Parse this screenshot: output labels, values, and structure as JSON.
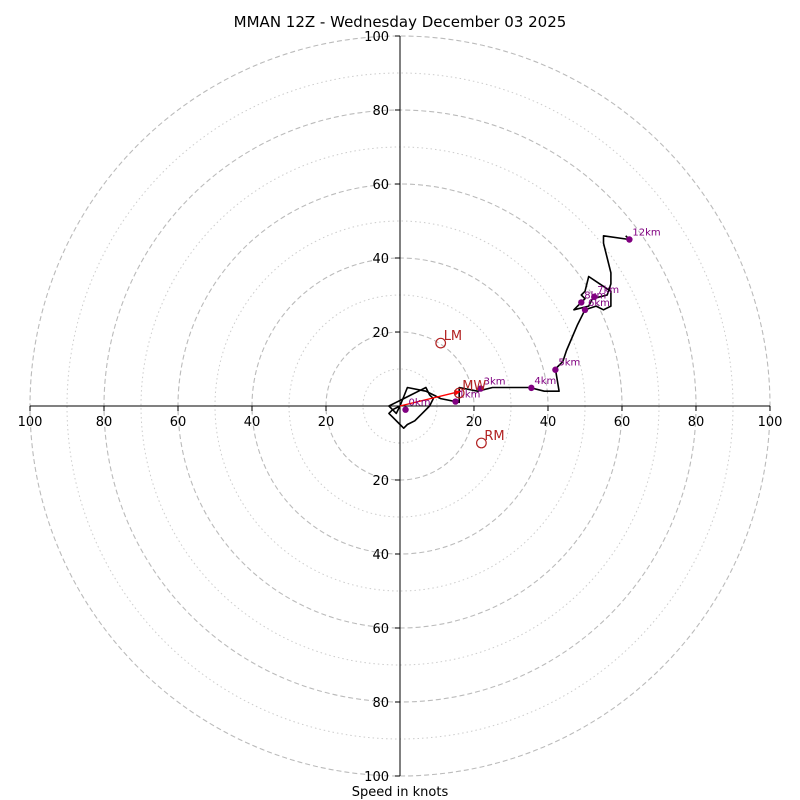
{
  "chart_data": {
    "type": "hodograph",
    "title": "MMAN 12Z - Wednesday December 03 2025",
    "xlabel": "Speed in knots",
    "max_speed": 100,
    "ring_major": [
      20,
      40,
      60,
      80,
      100
    ],
    "ring_minor": [
      10,
      30,
      50,
      70,
      90
    ],
    "tick_values": [
      20,
      40,
      60,
      80,
      100
    ],
    "tick_labels": [
      "20",
      "40",
      "60",
      "80",
      "100"
    ],
    "trace": [
      [
        0,
        0
      ],
      [
        2,
        5
      ],
      [
        7,
        4
      ],
      [
        9,
        3
      ],
      [
        11,
        2
      ],
      [
        16,
        1
      ],
      [
        16,
        5
      ],
      [
        21,
        4
      ],
      [
        25,
        5
      ],
      [
        31,
        5
      ],
      [
        35,
        5
      ],
      [
        39,
        4
      ],
      [
        43,
        4
      ],
      [
        42,
        10
      ],
      [
        44,
        12
      ],
      [
        45,
        15
      ],
      [
        48,
        22
      ],
      [
        50,
        26
      ],
      [
        53,
        27
      ],
      [
        55,
        26
      ],
      [
        57,
        27
      ],
      [
        57,
        31
      ],
      [
        54,
        33
      ],
      [
        51,
        35
      ],
      [
        50,
        31
      ],
      [
        49,
        30
      ],
      [
        50,
        29
      ],
      [
        49,
        28
      ],
      [
        48,
        27
      ],
      [
        47,
        26
      ],
      [
        51,
        27
      ],
      [
        52,
        29
      ],
      [
        56,
        30
      ],
      [
        57,
        33
      ],
      [
        57,
        36
      ],
      [
        56,
        40
      ],
      [
        55,
        44
      ],
      [
        55,
        46
      ],
      [
        62,
        45
      ],
      [
        61,
        46
      ]
    ],
    "trace_low": [
      [
        0,
        0
      ],
      [
        -1,
        -2
      ],
      [
        -2,
        -1
      ],
      [
        -3,
        0
      ],
      [
        -1,
        1
      ],
      [
        1,
        2
      ],
      [
        3,
        3
      ],
      [
        5,
        4
      ],
      [
        7,
        5
      ],
      [
        8,
        3
      ],
      [
        9,
        2
      ],
      [
        8,
        0
      ],
      [
        6,
        -2
      ],
      [
        4,
        -4
      ],
      [
        2,
        -5
      ],
      [
        1,
        -6
      ],
      [
        0,
        -5
      ],
      [
        -2,
        -3
      ],
      [
        -3,
        -2
      ],
      [
        -2,
        -1
      ],
      [
        0,
        0
      ]
    ],
    "height_markers": [
      {
        "label": "0km",
        "u": 1.5,
        "v": -1.0
      },
      {
        "label": "1km",
        "u": 15.0,
        "v": 1.2
      },
      {
        "label": "3km",
        "u": 21.8,
        "v": 4.7
      },
      {
        "label": "4km",
        "u": 35.5,
        "v": 4.9
      },
      {
        "label": "5km",
        "u": 42.0,
        "v": 9.8
      },
      {
        "label": "6km",
        "u": 50.0,
        "v": 26.0
      },
      {
        "label": "7km",
        "u": 52.5,
        "v": 29.5
      },
      {
        "label": "8km",
        "u": 49.0,
        "v": 28.0
      },
      {
        "label": "12km",
        "u": 62.0,
        "v": 45.0
      }
    ],
    "motion_points": [
      {
        "label": "LM",
        "u": 11.0,
        "v": 17.0
      },
      {
        "label": "RM",
        "u": 22.0,
        "v": -10.0
      },
      {
        "label": "MW",
        "u": 16.0,
        "v": 3.5
      }
    ],
    "shear_vector": {
      "from": [
        0,
        0
      ],
      "to": [
        16.5,
        4.0
      ]
    },
    "colors": {
      "ring": "#bbbbbb",
      "trace": "#000000",
      "marker": "#800080",
      "motion": "#b22222",
      "shear": "#ff0000"
    }
  }
}
